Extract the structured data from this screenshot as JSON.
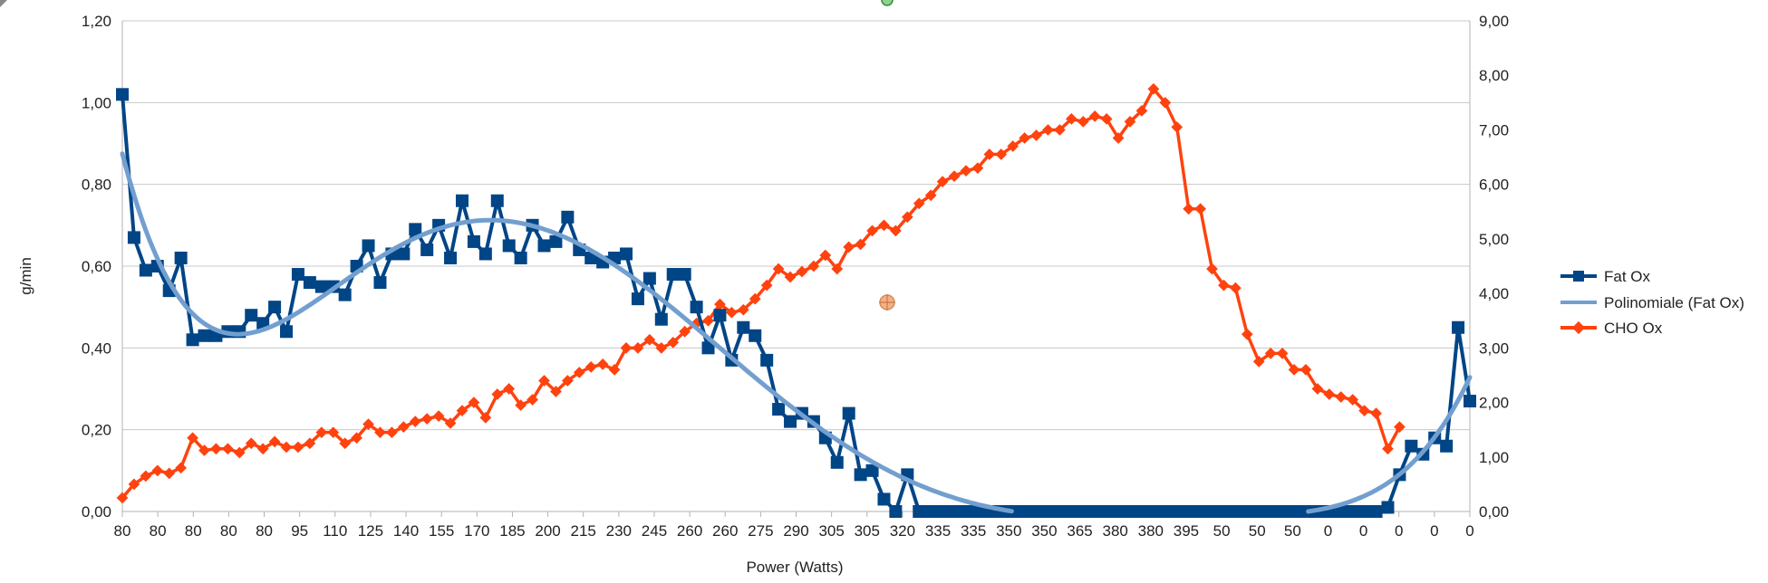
{
  "chart_data": {
    "type": "line",
    "title": "",
    "xlabel": "Power (Watts)",
    "ylabel": "g/min",
    "y_left_range": [
      0,
      1.2
    ],
    "y_right_range": [
      0,
      9
    ],
    "y_left_ticks": [
      "0,00",
      "0,20",
      "0,40",
      "0,60",
      "0,80",
      "1,00",
      "1,20"
    ],
    "y_right_ticks": [
      "0,00",
      "1,00",
      "2,00",
      "3,00",
      "4,00",
      "5,00",
      "6,00",
      "7,00",
      "8,00",
      "9,00"
    ],
    "x_ticks": [
      "80",
      "80",
      "80",
      "80",
      "80",
      "95",
      "110",
      "125",
      "140",
      "155",
      "170",
      "185",
      "200",
      "215",
      "230",
      "245",
      "260",
      "260",
      "275",
      "290",
      "305",
      "305",
      "320",
      "335",
      "335",
      "350",
      "350",
      "365",
      "380",
      "380",
      "395",
      "50",
      "50",
      "50",
      "0",
      "0",
      "0",
      "0",
      "0"
    ],
    "legend": [
      "Fat Ox",
      "Polinomiale (Fat Ox)",
      "CHO Ox"
    ],
    "legend_position": "right",
    "colors": {
      "fat": "#004586",
      "trend": "#729fcf",
      "cho": "#ff420e",
      "grid": "#c8c8c8",
      "axis": "#b3b3b3"
    },
    "fat_ox": [
      1.02,
      0.67,
      0.59,
      0.6,
      0.54,
      0.62,
      0.42,
      0.43,
      0.43,
      0.44,
      0.44,
      0.48,
      0.46,
      0.5,
      0.44,
      0.58,
      0.56,
      0.55,
      0.55,
      0.53,
      0.6,
      0.65,
      0.56,
      0.63,
      0.63,
      0.69,
      0.64,
      0.7,
      0.62,
      0.76,
      0.66,
      0.63,
      0.76,
      0.65,
      0.62,
      0.7,
      0.65,
      0.66,
      0.72,
      0.64,
      0.62,
      0.61,
      0.62,
      0.63,
      0.52,
      0.57,
      0.47,
      0.58,
      0.58,
      0.5,
      0.4,
      0.48,
      0.37,
      0.45,
      0.43,
      0.37,
      0.25,
      0.22,
      0.24,
      0.22,
      0.18,
      0.12,
      0.24,
      0.09,
      0.1,
      0.03,
      0,
      0.09,
      0,
      0,
      0,
      0,
      0,
      0,
      0,
      0,
      0,
      0,
      0,
      0,
      0,
      0,
      0,
      0,
      0,
      0,
      0,
      0,
      0,
      0,
      0,
      0,
      0,
      0,
      0,
      0,
      0,
      0,
      0,
      0,
      0,
      0,
      0,
      0,
      0,
      0,
      0,
      0,
      0.01,
      0.09,
      0.16,
      0.14,
      0.18,
      0.16,
      0.45,
      0.27
    ],
    "cho_ox": [
      0.25,
      0.5,
      0.65,
      0.75,
      0.7,
      0.8,
      1.35,
      1.12,
      1.15,
      1.15,
      1.08,
      1.25,
      1.15,
      1.28,
      1.18,
      1.18,
      1.25,
      1.45,
      1.45,
      1.25,
      1.35,
      1.6,
      1.45,
      1.45,
      1.55,
      1.65,
      1.7,
      1.75,
      1.62,
      1.85,
      2.0,
      1.72,
      2.15,
      2.25,
      1.95,
      2.05,
      2.4,
      2.2,
      2.4,
      2.55,
      2.65,
      2.7,
      2.6,
      3.0,
      3.0,
      3.15,
      3.0,
      3.1,
      3.3,
      3.45,
      3.5,
      3.8,
      3.65,
      3.7,
      3.9,
      4.15,
      4.45,
      4.3,
      4.4,
      4.5,
      4.7,
      4.45,
      4.85,
      4.9,
      5.15,
      5.25,
      5.15,
      5.4,
      5.65,
      5.8,
      6.05,
      6.15,
      6.25,
      6.3,
      6.55,
      6.55,
      6.7,
      6.85,
      6.9,
      7.0,
      7.0,
      7.2,
      7.15,
      7.25,
      7.2,
      6.85,
      7.15,
      7.35,
      7.75,
      7.5,
      7.05,
      5.55,
      5.55,
      4.45,
      4.15,
      4.1,
      3.25,
      2.75,
      2.9,
      2.9,
      2.6,
      2.6,
      2.25,
      2.15,
      2.1,
      2.05,
      1.85,
      1.8,
      1.15,
      1.55
    ]
  }
}
